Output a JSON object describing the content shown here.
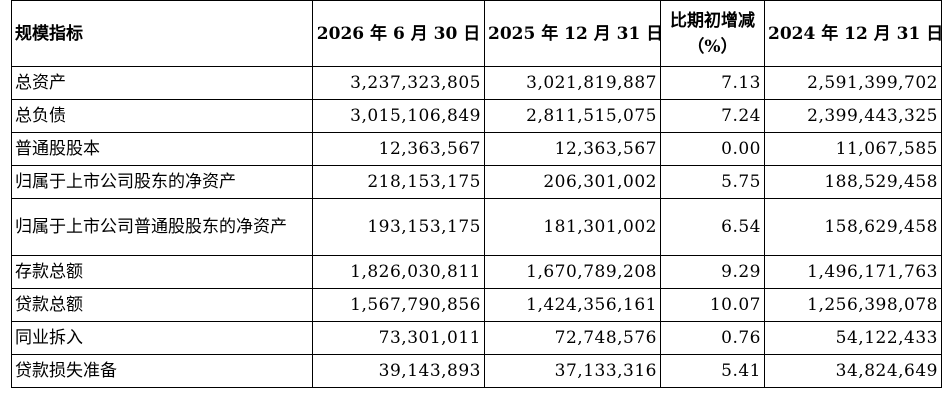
{
  "table": {
    "columns": [
      "规模指标",
      "2026 年 6 月 30 日",
      "2025 年 12 月 31 日",
      "比期初增减（%）",
      "2024 年 12 月 31 日"
    ],
    "rows": [
      [
        "总资产",
        "3,237,323,805",
        "3,021,819,887",
        "7.13",
        "2,591,399,702"
      ],
      [
        "总负债",
        "3,015,106,849",
        "2,811,515,075",
        "7.24",
        "2,399,443,325"
      ],
      [
        "普通股股本",
        "12,363,567",
        "12,363,567",
        "0.00",
        "11,067,585"
      ],
      [
        "归属于上市公司股东的净资产",
        "218,153,175",
        "206,301,002",
        "5.75",
        "188,529,458"
      ],
      [
        "归属于上市公司普通股股东的净资产",
        "193,153,175",
        "181,301,002",
        "6.54",
        "158,629,458"
      ],
      [
        "存款总额",
        "1,826,030,811",
        "1,670,789,208",
        "9.29",
        "1,496,171,763"
      ],
      [
        "贷款总额",
        "1,567,790,856",
        "1,424,356,161",
        "10.07",
        "1,256,398,078"
      ],
      [
        "同业拆入",
        "73,301,011",
        "72,748,576",
        "0.76",
        "54,122,433"
      ],
      [
        "贷款损失准备",
        "39,143,893",
        "37,133,316",
        "5.41",
        "34,824,649"
      ]
    ]
  }
}
